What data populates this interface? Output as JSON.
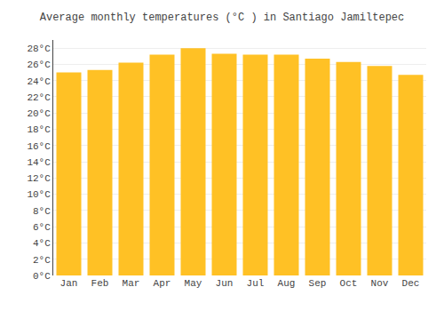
{
  "chart_data": {
    "type": "bar",
    "title": "Average monthly temperatures (°C ) in Santiago Jamiltepec",
    "categories": [
      "Jan",
      "Feb",
      "Mar",
      "Apr",
      "May",
      "Jun",
      "Jul",
      "Aug",
      "Sep",
      "Oct",
      "Nov",
      "Dec"
    ],
    "values": [
      25.0,
      25.3,
      26.2,
      27.2,
      28.0,
      27.3,
      27.2,
      27.2,
      26.7,
      26.3,
      25.8,
      24.7
    ],
    "color": "#FFC125",
    "ylim": [
      0,
      29
    ],
    "yticks": [
      {
        "value": 0,
        "label": "0°C"
      },
      {
        "value": 2,
        "label": "2°C"
      },
      {
        "value": 4,
        "label": "4°C"
      },
      {
        "value": 6,
        "label": "6°C"
      },
      {
        "value": 8,
        "label": "8°C"
      },
      {
        "value": 10,
        "label": "10°C"
      },
      {
        "value": 12,
        "label": "12°C"
      },
      {
        "value": 14,
        "label": "14°C"
      },
      {
        "value": 16,
        "label": "16°C"
      },
      {
        "value": 18,
        "label": "18°C"
      },
      {
        "value": 20,
        "label": "20°C"
      },
      {
        "value": 22,
        "label": "22°C"
      },
      {
        "value": 24,
        "label": "24°C"
      },
      {
        "value": 26,
        "label": "26°C"
      },
      {
        "value": 28,
        "label": "28°C"
      }
    ],
    "grid": true
  }
}
